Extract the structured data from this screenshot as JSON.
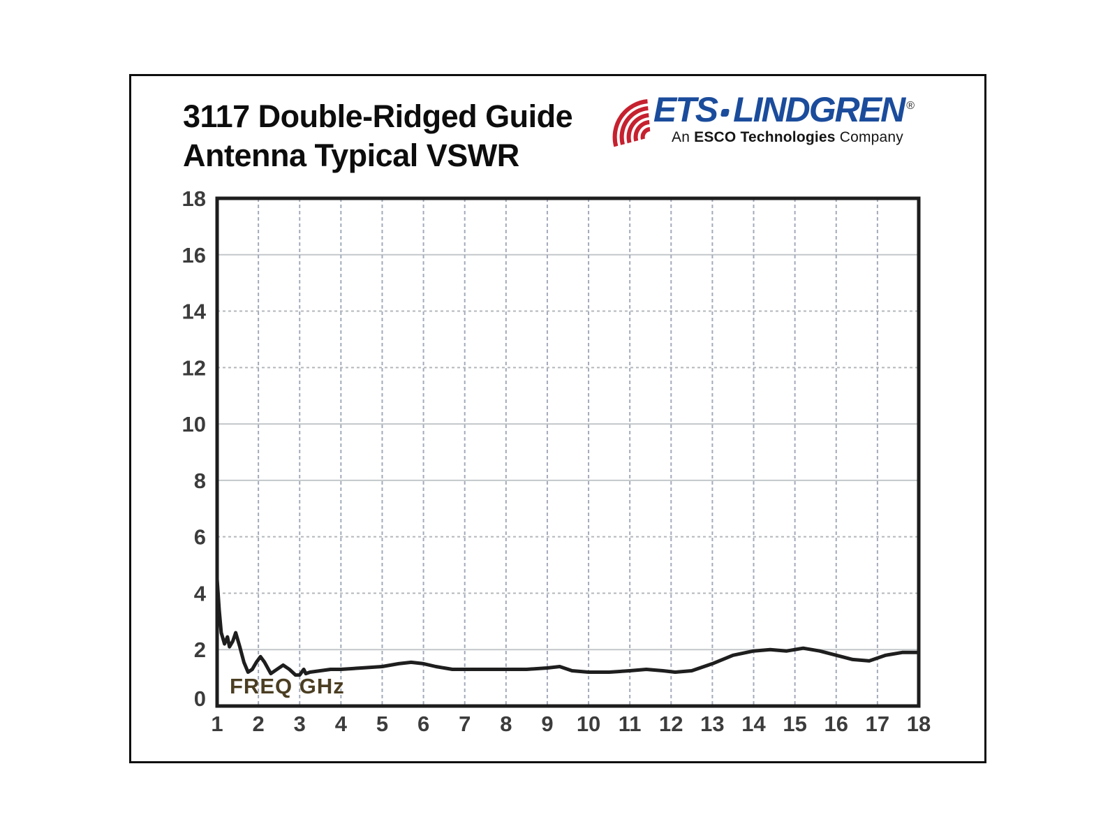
{
  "header": {
    "title_line1": "3117 Double-Ridged Guide",
    "title_line2": "Antenna Typical VSWR"
  },
  "logo": {
    "brand_ets": "ETS",
    "brand_lindgren": "LINDGREN",
    "registered": "®",
    "tagline_prefix": "An ",
    "tagline_bold": "ESCO Technologies",
    "tagline_suffix": " Company",
    "brand_color": "#1b4c9c",
    "icon_color": "#c6212f",
    "icon": "radio-waves-icon"
  },
  "chart_data": {
    "type": "line",
    "title": "3117 Double-Ridged Guide Antenna Typical VSWR",
    "xlabel": "FREQ GHz",
    "ylabel": "",
    "xlim": [
      1,
      18
    ],
    "ylim": [
      0,
      18
    ],
    "x_ticks": [
      1,
      2,
      3,
      4,
      5,
      6,
      7,
      8,
      9,
      10,
      11,
      12,
      13,
      14,
      15,
      16,
      17,
      18
    ],
    "y_ticks": [
      0,
      2,
      4,
      6,
      8,
      10,
      12,
      14,
      16,
      18
    ],
    "grid": true,
    "legend": "none",
    "grid_solid_y": [
      2,
      8,
      10,
      16
    ],
    "grid_color_solid": "#c3c7ca",
    "grid_color_dashed": "#b3b7bb",
    "grid_color_vert": "#a2aaba",
    "axis_color": "#1d1d1d",
    "line_color": "#1e1e1e",
    "tick_color": "#3c3c3c",
    "xlabel_color": "#4b3e22",
    "series": [
      {
        "name": "VSWR",
        "x": [
          1.0,
          1.05,
          1.1,
          1.18,
          1.25,
          1.3,
          1.38,
          1.45,
          1.55,
          1.65,
          1.75,
          1.85,
          1.95,
          2.05,
          2.15,
          2.3,
          2.45,
          2.6,
          2.75,
          2.9,
          3.0,
          3.1,
          3.15,
          3.25,
          3.5,
          3.75,
          4.0,
          4.5,
          5.0,
          5.4,
          5.7,
          6.0,
          6.3,
          6.7,
          7.0,
          7.5,
          8.0,
          8.5,
          9.0,
          9.3,
          9.6,
          10.0,
          10.5,
          11.0,
          11.4,
          11.8,
          12.1,
          12.5,
          13.0,
          13.5,
          14.0,
          14.4,
          14.8,
          15.2,
          15.6,
          16.0,
          16.4,
          16.8,
          17.2,
          17.6,
          18.0
        ],
        "y": [
          4.5,
          3.4,
          2.6,
          2.2,
          2.45,
          2.1,
          2.3,
          2.6,
          2.1,
          1.55,
          1.2,
          1.3,
          1.55,
          1.75,
          1.55,
          1.15,
          1.3,
          1.45,
          1.3,
          1.1,
          1.1,
          1.3,
          1.15,
          1.2,
          1.25,
          1.3,
          1.3,
          1.35,
          1.4,
          1.5,
          1.55,
          1.5,
          1.4,
          1.3,
          1.3,
          1.3,
          1.3,
          1.3,
          1.35,
          1.4,
          1.25,
          1.2,
          1.2,
          1.25,
          1.3,
          1.25,
          1.2,
          1.25,
          1.5,
          1.8,
          1.95,
          2.0,
          1.95,
          2.05,
          1.95,
          1.8,
          1.65,
          1.6,
          1.8,
          1.9,
          1.9
        ]
      }
    ]
  }
}
